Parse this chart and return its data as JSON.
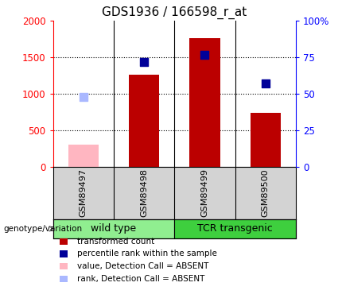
{
  "title": "GDS1936 / 166598_r_at",
  "samples": [
    "GSM89497",
    "GSM89498",
    "GSM89499",
    "GSM89500"
  ],
  "bar_values": [
    310,
    1260,
    1760,
    745
  ],
  "bar_absent": [
    true,
    false,
    false,
    false
  ],
  "rank_values": [
    48,
    72,
    77,
    57
  ],
  "rank_absent": [
    true,
    false,
    false,
    false
  ],
  "ylim_left": [
    0,
    2000
  ],
  "ylim_right": [
    0,
    100
  ],
  "yticks_left": [
    0,
    500,
    1000,
    1500,
    2000
  ],
  "yticks_right": [
    0,
    25,
    50,
    75,
    100
  ],
  "ytick_labels_right": [
    "0",
    "25",
    "50",
    "75",
    "100%"
  ],
  "groups": [
    {
      "label": "wild type",
      "indices": [
        0,
        1
      ],
      "color": "#90ee90"
    },
    {
      "label": "TCR transgenic",
      "indices": [
        2,
        3
      ],
      "color": "#3ecf3e"
    }
  ],
  "bar_color_present": "#bb0000",
  "bar_color_absent": "#ffb6c1",
  "rank_color_present": "#000099",
  "rank_color_absent": "#aab8ff",
  "bar_width": 0.5,
  "rank_marker_size": 60,
  "legend_items": [
    {
      "label": "transformed count",
      "color": "#bb0000",
      "type": "square"
    },
    {
      "label": "percentile rank within the sample",
      "color": "#000099",
      "type": "square"
    },
    {
      "label": "value, Detection Call = ABSENT",
      "color": "#ffb6c1",
      "type": "square"
    },
    {
      "label": "rank, Detection Call = ABSENT",
      "color": "#aab8ff",
      "type": "square"
    }
  ],
  "plot_bg": "#d3d3d3",
  "sample_label_fontsize": 8,
  "group_label_fontsize": 9,
  "title_fontsize": 11,
  "grid_color": "black",
  "grid_linestyle": ":",
  "grid_linewidth": 0.8
}
